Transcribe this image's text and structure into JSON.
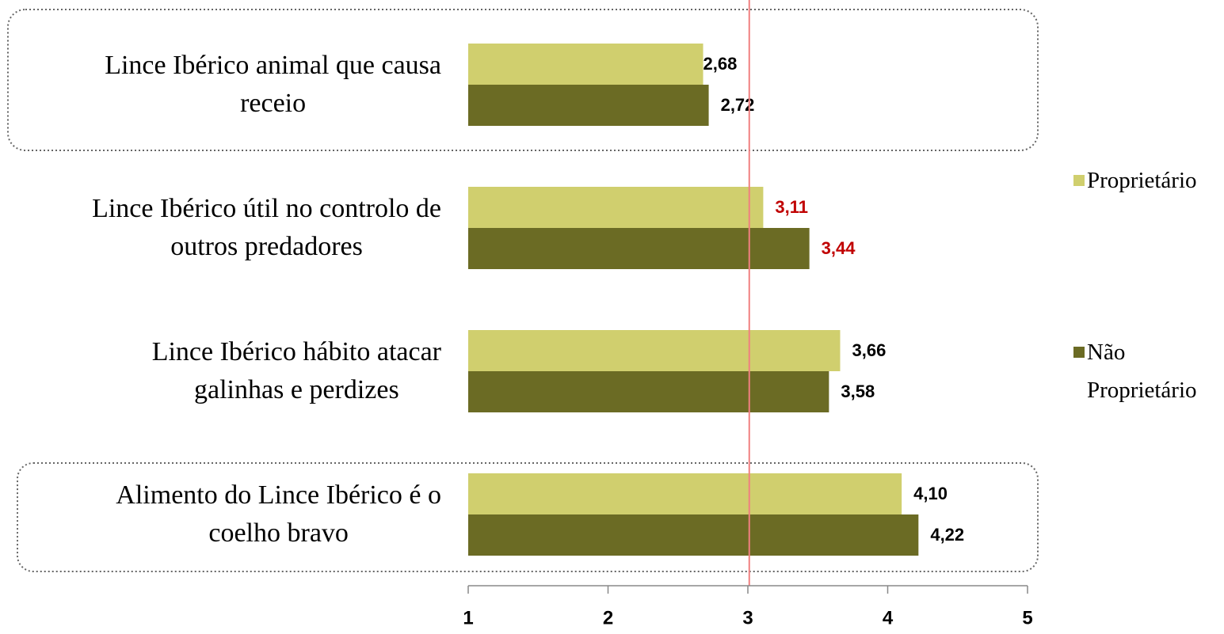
{
  "chart_data": {
    "type": "hbar",
    "categories": [
      "Lince Ibérico animal que causa\nreceio",
      "Lince Ibérico útil no controlo de\noutros predadores",
      "Lince Ibérico hábito atacar\ngalinhas e perdizes",
      "Alimento do Lince Ibérico é o\ncoelho bravo"
    ],
    "series": [
      {
        "name": "Proprietário",
        "color": "#d0cf6e",
        "values": [
          2.68,
          3.11,
          3.66,
          4.1
        ],
        "value_labels": [
          "2,68",
          "3,11",
          "3,66",
          "4,10"
        ],
        "label_colors": [
          "#000000",
          "#c00000",
          "#000000",
          "#000000"
        ]
      },
      {
        "name": "Não Proprietário",
        "color": "#6b6b24",
        "values": [
          2.72,
          3.44,
          3.58,
          4.22
        ],
        "value_labels": [
          "2,72",
          "3,44",
          "3,58",
          "4,22"
        ],
        "label_colors": [
          "#000000",
          "#c00000",
          "#000000",
          "#000000"
        ]
      }
    ],
    "xlim": [
      1,
      5
    ],
    "xticks": [
      1,
      2,
      3,
      4,
      5
    ],
    "reference_line": {
      "value": 3.01,
      "color": "#f08080"
    },
    "legend": "right"
  }
}
